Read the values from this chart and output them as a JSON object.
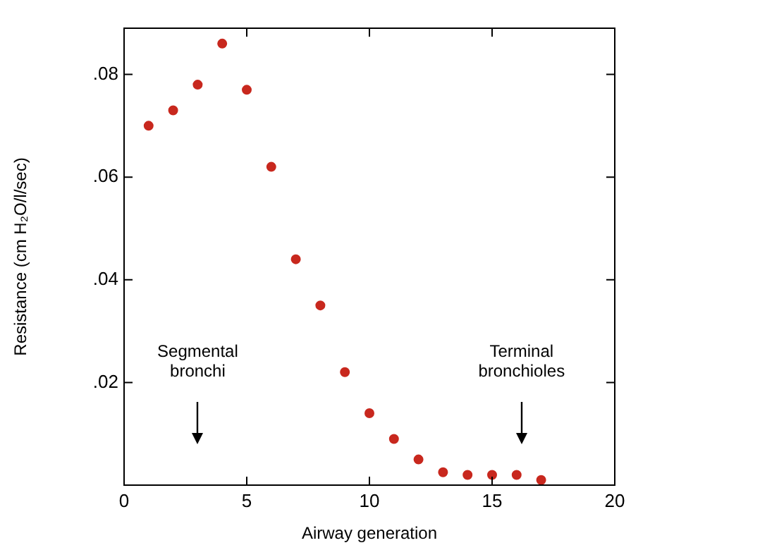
{
  "chart_data": {
    "type": "scatter",
    "xlabel": "Airway generation",
    "ylabel": "Resistance (cm H₂O/l/sec)",
    "x": [
      1,
      2,
      3,
      4,
      5,
      6,
      7,
      8,
      9,
      10,
      11,
      12,
      13,
      14,
      15,
      16,
      17
    ],
    "series": [
      {
        "color": "#c8281e",
        "values": [
          0.07,
          0.073,
          0.078,
          0.086,
          0.077,
          0.062,
          0.044,
          0.035,
          0.022,
          0.014,
          0.009,
          0.005,
          0.0025,
          0.002,
          0.002,
          0.002,
          0.001
        ]
      }
    ],
    "xlim": [
      0,
      20
    ],
    "xticks": [
      0,
      5,
      10,
      15,
      20
    ],
    "ylim": [
      0,
      0.089
    ],
    "yticks": [
      {
        "value": 0.02,
        "label": ".02"
      },
      {
        "value": 0.04,
        "label": ".04"
      },
      {
        "value": 0.06,
        "label": ".06"
      },
      {
        "value": 0.08,
        "label": ".08"
      }
    ],
    "marker": "circle",
    "annotations": [
      "Segmental bronchi",
      "Terminal bronchioles"
    ]
  }
}
